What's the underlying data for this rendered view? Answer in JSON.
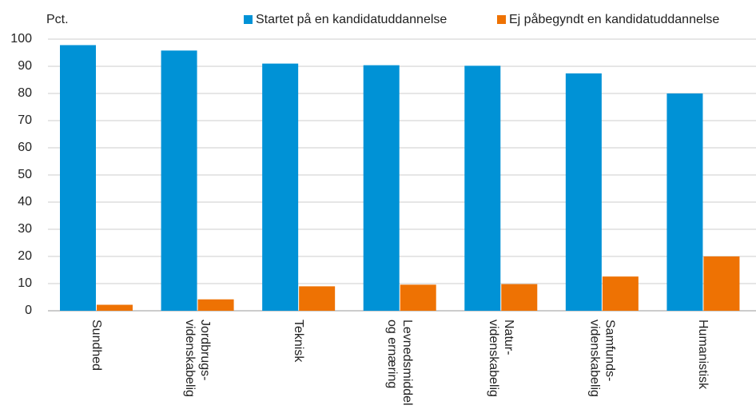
{
  "chart_data": {
    "type": "bar",
    "y_label": "Pct.",
    "categories": [
      "Sundhed",
      "Jordbrugs-\nvidenskabelig",
      "Teknisk",
      "Levnedsmiddel\nog ernæring",
      "Natur-\nvidenskabelig",
      "Samfunds-\nvidenskabelig",
      "Humanistisk"
    ],
    "series": [
      {
        "name": "Startet på en kandidatuddannelse",
        "color": "#0092d6",
        "values": [
          97.8,
          95.8,
          91,
          90.4,
          90.2,
          87.4,
          80
        ]
      },
      {
        "name": "Ej påbegyndt en kandidatuddannelse",
        "color": "#ee7203",
        "values": [
          2.2,
          4.2,
          9,
          9.6,
          9.8,
          12.6,
          20
        ]
      }
    ],
    "ylim": [
      0,
      100
    ],
    "yticks": [
      0,
      10,
      20,
      30,
      40,
      50,
      60,
      70,
      80,
      90,
      100
    ],
    "grid": true,
    "legend": "top"
  }
}
